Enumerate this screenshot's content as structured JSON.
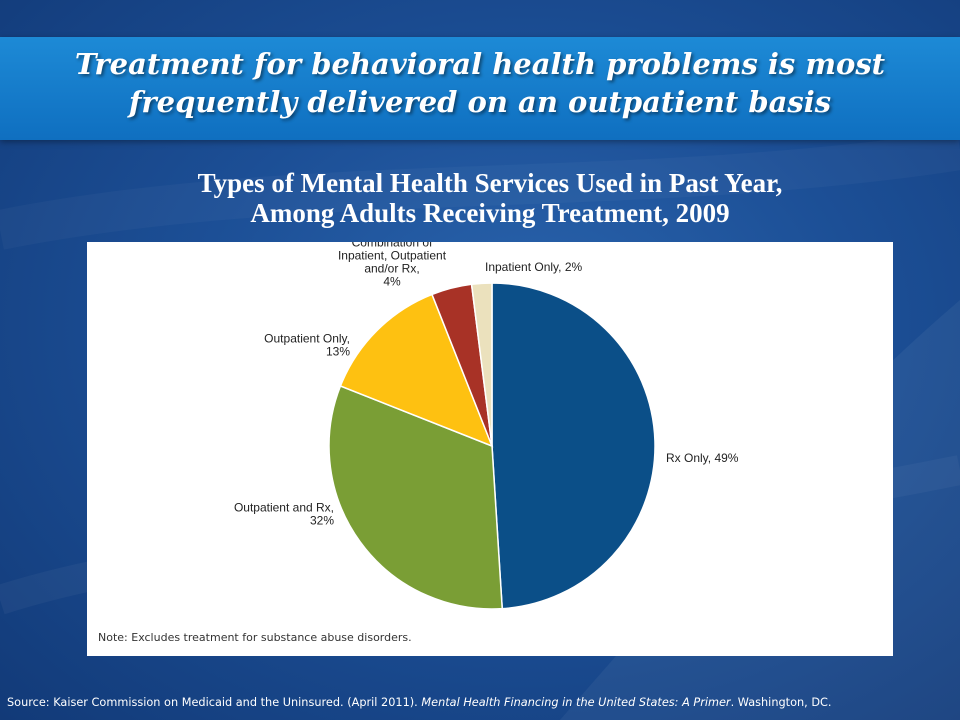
{
  "slide": {
    "title_line1": "Treatment for behavioral health problems is most",
    "title_line2": "frequently delivered on an outpatient basis",
    "subtitle_line1": "Types of Mental Health Services Used in Past Year,",
    "subtitle_line2": "Among Adults Receiving Treatment, 2009",
    "note": "Note: Excludes treatment for substance abuse disorders.",
    "source_prefix": "Source: Kaiser Commission on Medicaid and the Uninsured. (April 2011). ",
    "source_title": "Mental Health Financing in the United States: A Primer",
    "source_suffix": ". Washington, DC."
  },
  "chart_data": {
    "type": "pie",
    "title": "Types of Mental Health Services Used in Past Year, Among Adults Receiving Treatment, 2009",
    "slices": [
      {
        "label_lines": [
          "Rx Only, 49%"
        ],
        "value": 49,
        "color": "#0b4f88"
      },
      {
        "label_lines": [
          "Outpatient and Rx,",
          "32%"
        ],
        "value": 32,
        "color": "#7a9e35"
      },
      {
        "label_lines": [
          "Outpatient Only,",
          "13%"
        ],
        "value": 13,
        "color": "#fec111"
      },
      {
        "label_lines": [
          "Combination of",
          "Inpatient, Outpatient",
          "and/or Rx,",
          "4%"
        ],
        "value": 4,
        "color": "#a83226"
      },
      {
        "label_lines": [
          "Inpatient Only, 2%"
        ],
        "value": 2,
        "color": "#ebe1bd"
      }
    ]
  }
}
